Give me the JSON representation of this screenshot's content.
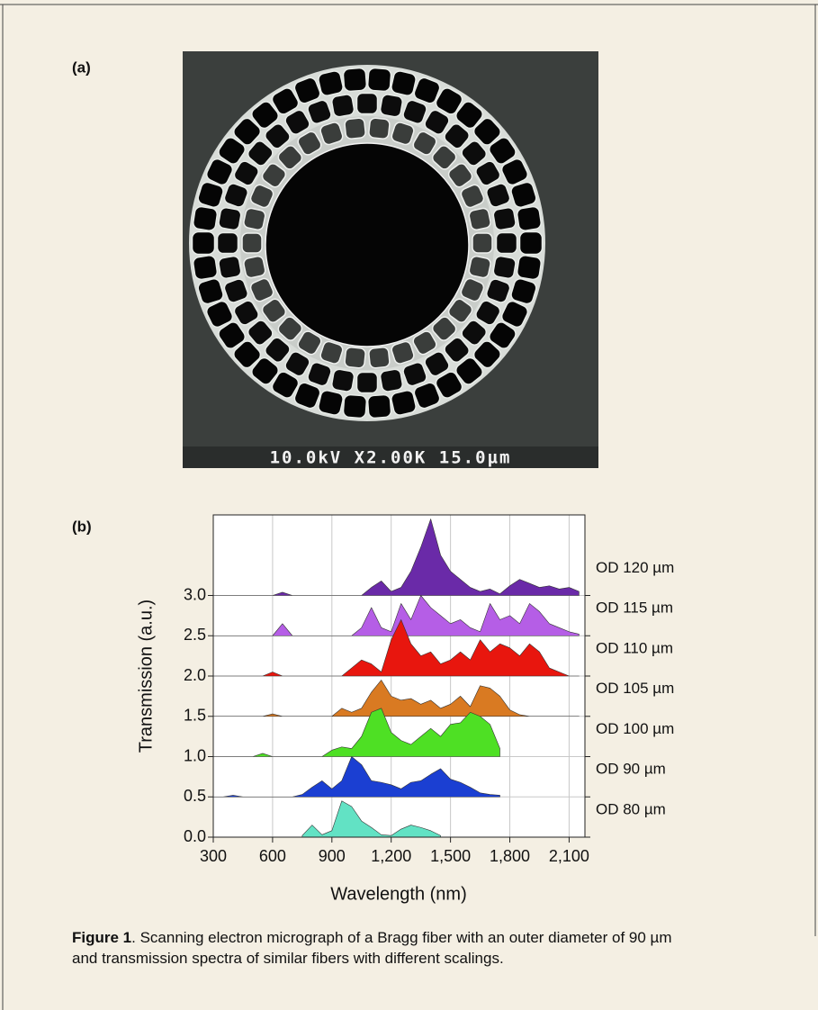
{
  "figure": {
    "panel_a_label": "(a)",
    "panel_b_label": "(b)",
    "sem_label": "10.0kV X2.00K 15.0µm"
  },
  "chart_data": {
    "type": "offset-area",
    "x_label": "Wavelength (nm)",
    "y_label": "Transmission (a.u.)",
    "xlim": [
      300,
      2180
    ],
    "ylim": [
      0,
      4.0
    ],
    "xticks": [
      300,
      600,
      900,
      {
        "value": 1200,
        "label": "1,200"
      },
      {
        "value": 1500,
        "label": "1,500"
      },
      {
        "value": 1800,
        "label": "1,800"
      },
      {
        "value": 2100,
        "label": "2,100"
      }
    ],
    "yticks": [
      {
        "value": 0,
        "label": "0.0"
      },
      0.5,
      {
        "value": 1,
        "label": "1.0"
      },
      1.5,
      {
        "value": 2,
        "label": "2.0"
      },
      2.5,
      {
        "value": 3,
        "label": "3.0"
      }
    ],
    "grid": true,
    "x": [
      300,
      350,
      400,
      450,
      500,
      550,
      600,
      650,
      700,
      750,
      800,
      850,
      900,
      950,
      1000,
      1050,
      1100,
      1150,
      1200,
      1250,
      1300,
      1350,
      1400,
      1450,
      1500,
      1550,
      1600,
      1650,
      1700,
      1750,
      1800,
      1850,
      1900,
      1950,
      2000,
      2050,
      2100,
      2150
    ],
    "series": [
      {
        "name": "OD 120 µm",
        "color": "#6a2aa8",
        "baseline": 3.0,
        "values": [
          3.0,
          3.0,
          3.0,
          3.0,
          3.0,
          3.0,
          3.0,
          3.04,
          3.0,
          3.0,
          3.0,
          3.0,
          3.0,
          3.0,
          3.0,
          3.0,
          3.1,
          3.18,
          3.05,
          3.1,
          3.3,
          3.6,
          3.95,
          3.5,
          3.3,
          3.2,
          3.1,
          3.05,
          3.08,
          3.02,
          3.12,
          3.2,
          3.15,
          3.1,
          3.12,
          3.08,
          3.1,
          3.05
        ]
      },
      {
        "name": "OD 115 µm",
        "color": "#b55ee6",
        "baseline": 2.5,
        "values": [
          2.5,
          2.5,
          2.5,
          2.5,
          2.5,
          2.5,
          2.5,
          2.65,
          2.5,
          2.5,
          2.5,
          2.5,
          2.5,
          2.5,
          2.5,
          2.6,
          2.85,
          2.6,
          2.55,
          2.9,
          2.7,
          3.0,
          2.85,
          2.75,
          2.65,
          2.7,
          2.6,
          2.55,
          2.9,
          2.7,
          2.75,
          2.65,
          2.9,
          2.8,
          2.65,
          2.6,
          2.55,
          2.52
        ]
      },
      {
        "name": "OD 110 µm",
        "color": "#e8160e",
        "baseline": 2.0,
        "values": [
          2.0,
          2.0,
          2.0,
          2.0,
          2.0,
          2.0,
          2.05,
          2.0,
          2.0,
          2.0,
          2.0,
          2.0,
          2.0,
          2.0,
          2.1,
          2.2,
          2.15,
          2.05,
          2.45,
          2.7,
          2.4,
          2.25,
          2.3,
          2.15,
          2.2,
          2.3,
          2.2,
          2.45,
          2.3,
          2.4,
          2.35,
          2.25,
          2.4,
          2.3,
          2.1,
          2.05,
          2.0,
          2.0
        ]
      },
      {
        "name": "OD 105 µm",
        "color": "#d97a22",
        "baseline": 1.5,
        "values": [
          1.5,
          1.5,
          1.5,
          1.5,
          1.5,
          1.5,
          1.53,
          1.5,
          1.5,
          1.5,
          1.5,
          1.5,
          1.5,
          1.6,
          1.55,
          1.6,
          1.8,
          1.95,
          1.75,
          1.7,
          1.72,
          1.65,
          1.7,
          1.6,
          1.65,
          1.75,
          1.62,
          1.88,
          1.85,
          1.75,
          1.58,
          1.52,
          1.5,
          1.5,
          1.5,
          1.5,
          1.5,
          1.5
        ]
      },
      {
        "name": "OD 100 µm",
        "color": "#4ee024",
        "baseline": 1.0,
        "values": [
          1.0,
          1.0,
          1.0,
          1.0,
          1.0,
          1.04,
          1.0,
          1.0,
          1.0,
          1.0,
          1.0,
          1.0,
          1.08,
          1.12,
          1.1,
          1.25,
          1.55,
          1.6,
          1.3,
          1.2,
          1.15,
          1.25,
          1.35,
          1.25,
          1.4,
          1.42,
          1.55,
          1.5,
          1.4,
          1.1,
          null,
          null,
          null,
          null,
          null,
          null,
          null,
          null
        ]
      },
      {
        "name": "OD 90 µm",
        "color": "#1b3fd2",
        "baseline": 0.5,
        "values": [
          0.5,
          0.5,
          0.52,
          0.5,
          0.5,
          0.5,
          0.5,
          0.5,
          0.5,
          0.53,
          0.62,
          0.7,
          0.6,
          0.7,
          1.0,
          0.9,
          0.7,
          0.68,
          0.65,
          0.6,
          0.68,
          0.7,
          0.78,
          0.85,
          0.72,
          0.68,
          0.62,
          0.55,
          0.53,
          0.52,
          null,
          null,
          null,
          null,
          null,
          null,
          null,
          null
        ]
      },
      {
        "name": "OD 80 µm",
        "color": "#62e2c4",
        "baseline": 0.0,
        "values": [
          null,
          null,
          null,
          null,
          null,
          null,
          null,
          null,
          null,
          0.02,
          0.15,
          0.03,
          0.08,
          0.45,
          0.38,
          0.2,
          0.12,
          0.03,
          0.02,
          0.1,
          0.15,
          0.12,
          0.08,
          0.02,
          null,
          null,
          null,
          null,
          null,
          null,
          null,
          null,
          null,
          null,
          null,
          null,
          null,
          null
        ]
      }
    ]
  },
  "caption": {
    "label": "Figure 1",
    "text": ". Scanning electron micrograph of a Bragg fiber with an outer diameter of 90 µm and transmission spectra of similar fibers with different scalings."
  }
}
